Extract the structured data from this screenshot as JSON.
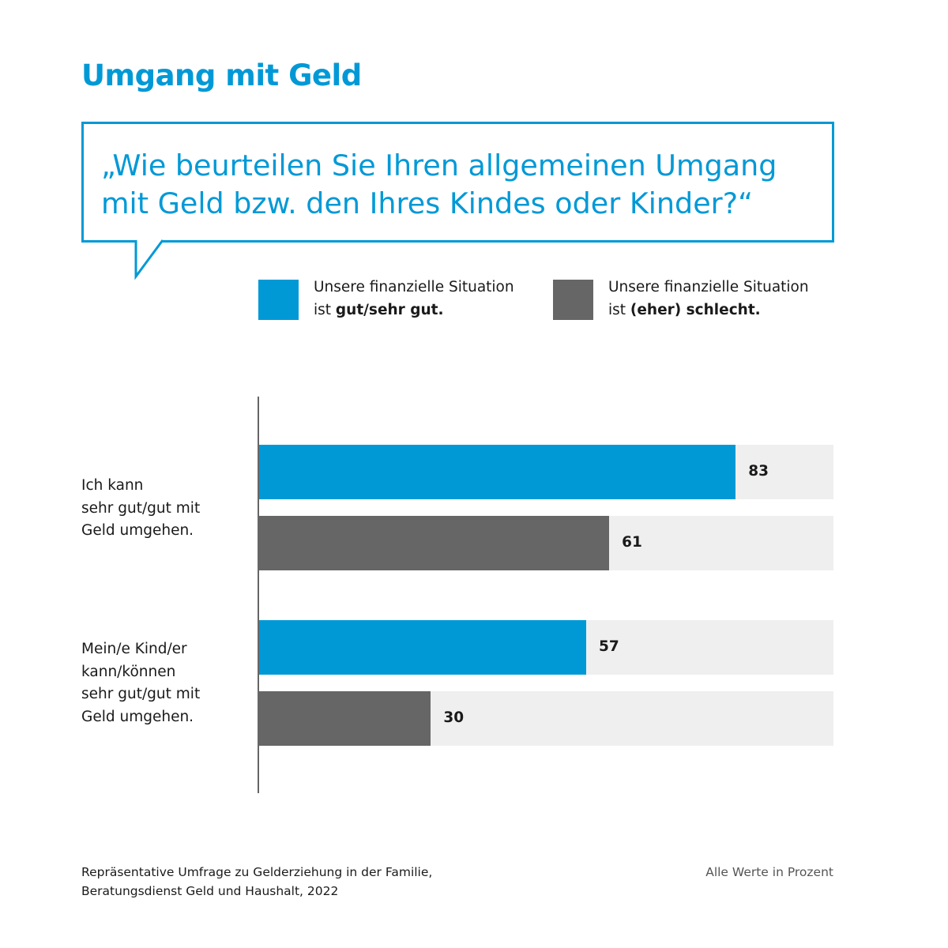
{
  "title": "Umgang mit Geld",
  "question": "„Wie beurteilen Sie Ihren allgemeinen Umgang mit Geld bzw. den Ihres Kindes oder Kinder?“",
  "colors": {
    "blue": "#0099d6",
    "gray": "#666666",
    "track": "#efefef"
  },
  "chart_data": {
    "type": "bar",
    "orientation": "horizontal",
    "xlim": [
      0,
      100
    ],
    "categories": [
      "Ich kann sehr gut/gut mit Geld umgehen.",
      "Mein/e Kind/er kann/können sehr gut/gut mit Geld umgehen."
    ],
    "series": [
      {
        "name": "Unsere finanzielle Situation ist gut/sehr gut.",
        "line1": "Unsere finanzielle Situation",
        "line2_pre": "ist ",
        "line2_bold": "gut/sehr gut.",
        "color": "#0099d6",
        "values": [
          83,
          57
        ]
      },
      {
        "name": "Unsere finanzielle Situation ist (eher) schlecht.",
        "line1": "Unsere finanzielle Situation",
        "line2_pre": "ist ",
        "line2_bold": "(eher) schlecht.",
        "color": "#666666",
        "values": [
          61,
          30
        ]
      }
    ],
    "category_lines": [
      [
        "Ich kann",
        "sehr gut/gut mit",
        "Geld umgehen."
      ],
      [
        "Mein/e Kind/er",
        "kann/können",
        "sehr gut/gut mit",
        "Geld umgehen."
      ]
    ],
    "legend": "top"
  },
  "footer": {
    "source_line1": "Repräsentative Umfrage zu Gelderziehung in der Familie,",
    "source_line2": "Beratungsdienst Geld und Haushalt, 2022",
    "note": "Alle Werte in Prozent"
  }
}
